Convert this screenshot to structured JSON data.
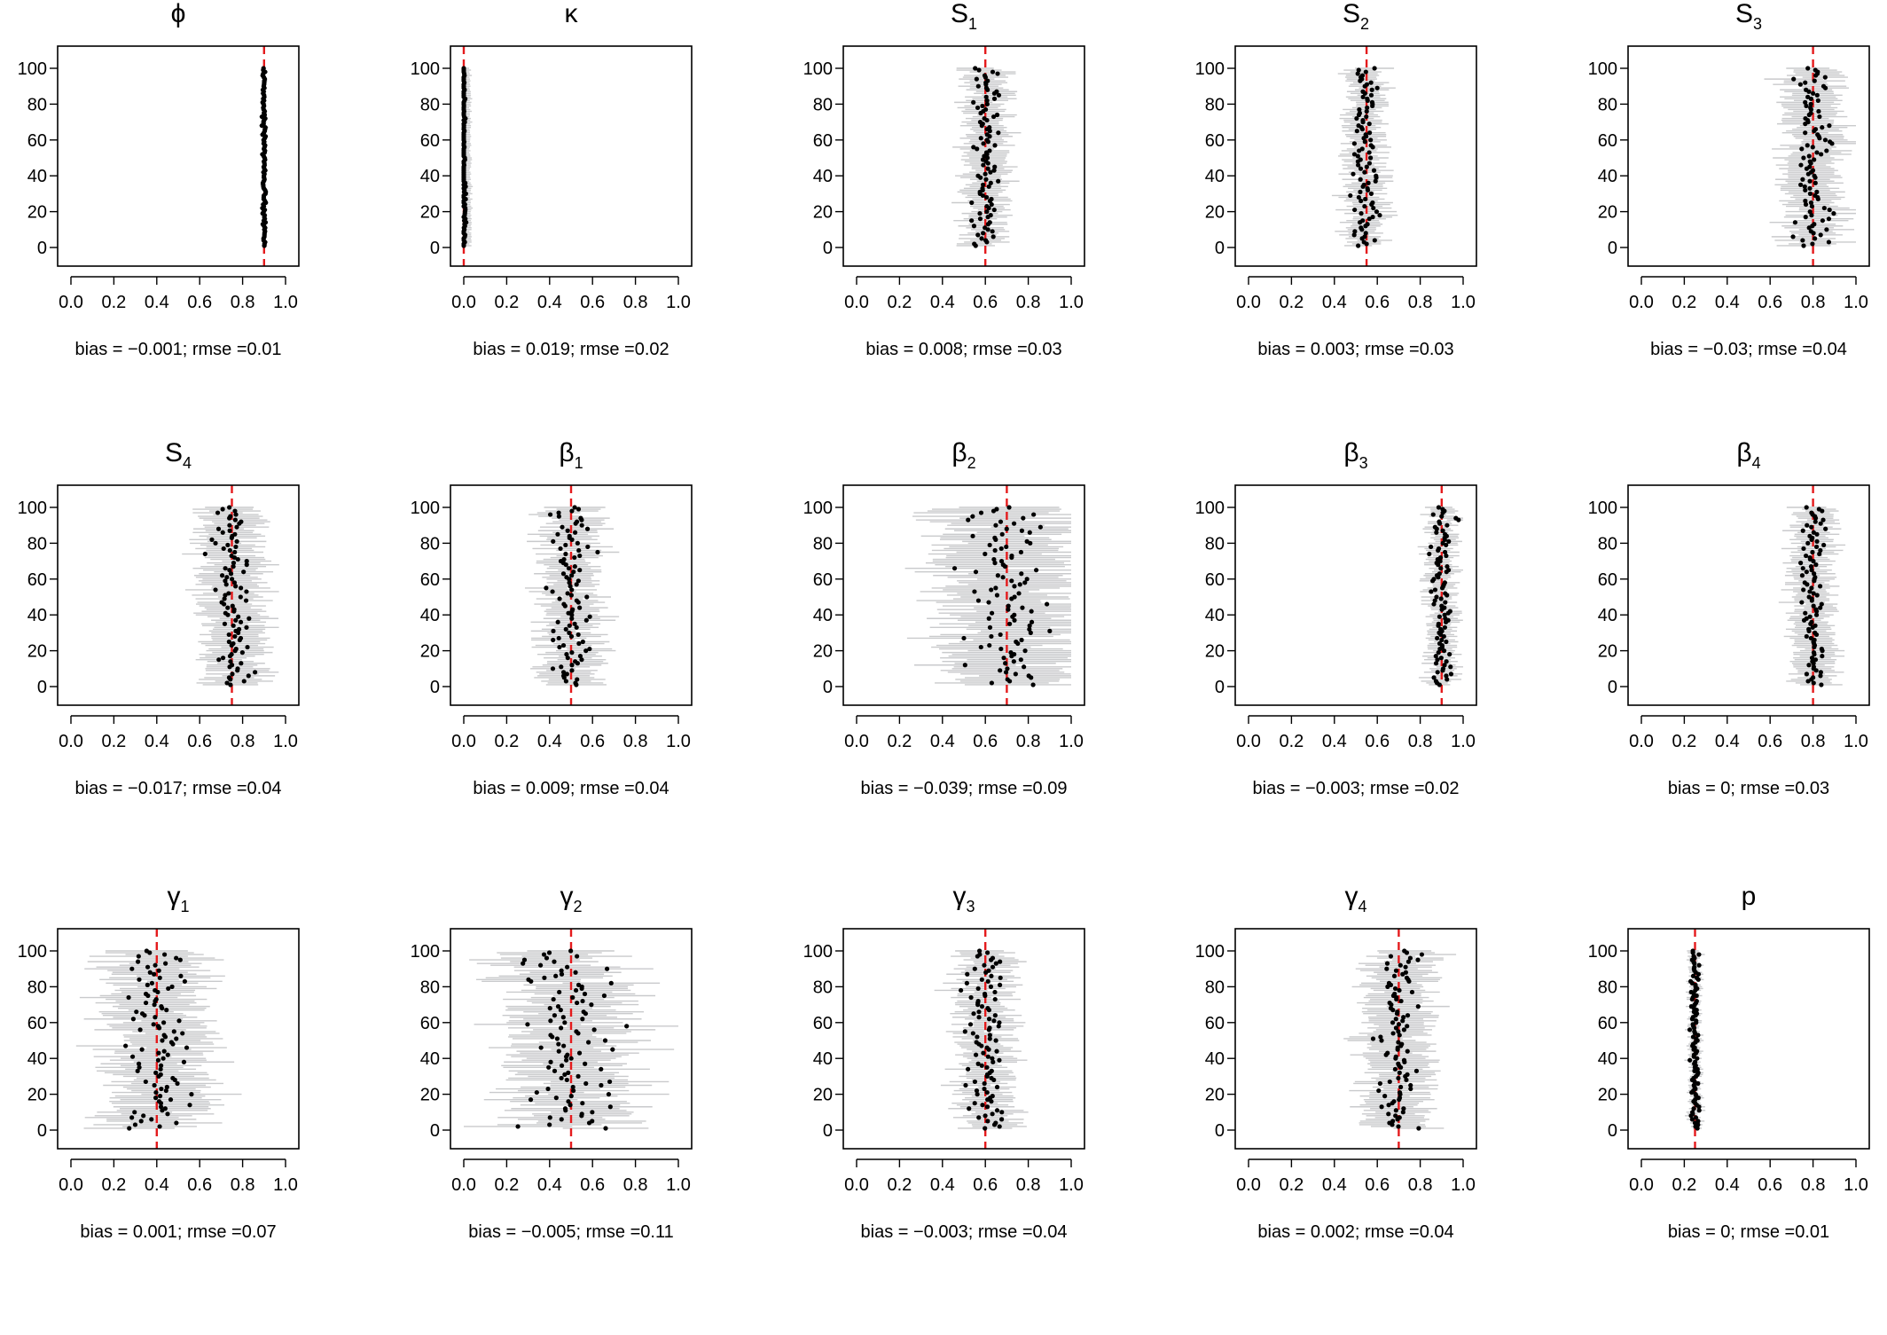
{
  "chart_data": [
    {
      "type": "scatter",
      "title": "ϕ",
      "sub": "",
      "truth": 0.9,
      "spread": 0.004,
      "ci_half": 0.012,
      "caption": "bias = −0.001; rmse =0.01",
      "xlim": [
        0,
        1
      ],
      "ylim": [
        0,
        100
      ]
    },
    {
      "type": "scatter",
      "title": "κ",
      "sub": "",
      "truth": 0.0,
      "spread": 0.005,
      "ci_half": 0.03,
      "caption": "bias = 0.019; rmse =0.02",
      "xlim": [
        0,
        1
      ],
      "ylim": [
        0,
        100
      ]
    },
    {
      "type": "scatter",
      "title": "S",
      "sub": "1",
      "truth": 0.6,
      "spread": 0.03,
      "ci_half": 0.09,
      "caption": "bias = 0.008; rmse =0.03",
      "xlim": [
        0,
        1
      ],
      "ylim": [
        0,
        100
      ]
    },
    {
      "type": "scatter",
      "title": "S",
      "sub": "2",
      "truth": 0.55,
      "spread": 0.03,
      "ci_half": 0.08,
      "caption": "bias = 0.003; rmse =0.03",
      "xlim": [
        0,
        1
      ],
      "ylim": [
        0,
        100
      ]
    },
    {
      "type": "scatter",
      "title": "S",
      "sub": "3",
      "truth": 0.8,
      "spread": 0.04,
      "ci_half": 0.12,
      "caption": "bias = −0.03; rmse =0.04",
      "xlim": [
        0,
        1
      ],
      "ylim": [
        0,
        100
      ]
    },
    {
      "type": "scatter",
      "title": "S",
      "sub": "4",
      "truth": 0.75,
      "spread": 0.04,
      "ci_half": 0.13,
      "caption": "bias = −0.017; rmse =0.04",
      "xlim": [
        0,
        1
      ],
      "ylim": [
        0,
        100
      ]
    },
    {
      "type": "scatter",
      "title": "β",
      "sub": "1",
      "truth": 0.5,
      "spread": 0.04,
      "ci_half": 0.12,
      "caption": "bias = 0.009; rmse =0.04",
      "xlim": [
        0,
        1
      ],
      "ylim": [
        0,
        100
      ]
    },
    {
      "type": "scatter",
      "title": "β",
      "sub": "2",
      "truth": 0.7,
      "spread": 0.09,
      "ci_half": 0.28,
      "caption": "bias = −0.039; rmse =0.09",
      "xlim": [
        0,
        1
      ],
      "ylim": [
        0,
        100
      ]
    },
    {
      "type": "scatter",
      "title": "β",
      "sub": "3",
      "truth": 0.9,
      "spread": 0.025,
      "ci_half": 0.06,
      "caption": "bias = −0.003; rmse =0.02",
      "xlim": [
        0,
        1
      ],
      "ylim": [
        0,
        100
      ]
    },
    {
      "type": "scatter",
      "title": "β",
      "sub": "4",
      "truth": 0.8,
      "spread": 0.03,
      "ci_half": 0.09,
      "caption": "bias = 0; rmse =0.03",
      "xlim": [
        0,
        1
      ],
      "ylim": [
        0,
        100
      ]
    },
    {
      "type": "scatter",
      "title": "γ",
      "sub": "1",
      "truth": 0.4,
      "spread": 0.07,
      "ci_half": 0.2,
      "caption": "bias = 0.001; rmse =0.07",
      "xlim": [
        0,
        1
      ],
      "ylim": [
        0,
        100
      ]
    },
    {
      "type": "scatter",
      "title": "γ",
      "sub": "2",
      "truth": 0.5,
      "spread": 0.11,
      "ci_half": 0.24,
      "caption": "bias = −0.005; rmse =0.11",
      "xlim": [
        0,
        1
      ],
      "ylim": [
        0,
        100
      ]
    },
    {
      "type": "scatter",
      "title": "γ",
      "sub": "3",
      "truth": 0.6,
      "spread": 0.04,
      "ci_half": 0.11,
      "caption": "bias = −0.003; rmse =0.04",
      "xlim": [
        0,
        1
      ],
      "ylim": [
        0,
        100
      ]
    },
    {
      "type": "scatter",
      "title": "γ",
      "sub": "4",
      "truth": 0.7,
      "spread": 0.04,
      "ci_half": 0.14,
      "caption": "bias = 0.002; rmse =0.04",
      "xlim": [
        0,
        1
      ],
      "ylim": [
        0,
        100
      ]
    },
    {
      "type": "scatter",
      "title": "p",
      "sub": "",
      "truth": 0.25,
      "spread": 0.01,
      "ci_half": 0.025,
      "caption": "bias = 0; rmse =0.01",
      "xlim": [
        0,
        1
      ],
      "ylim": [
        0,
        100
      ]
    }
  ],
  "x_ticks": [
    "0.0",
    "0.2",
    "0.4",
    "0.6",
    "0.8",
    "1.0"
  ],
  "y_ticks": [
    "0",
    "20",
    "40",
    "60",
    "80",
    "100"
  ],
  "colors": {
    "truth_line": "#e41a1c",
    "ci": "#c9cacc",
    "point": "#000000",
    "axis": "#000000"
  }
}
